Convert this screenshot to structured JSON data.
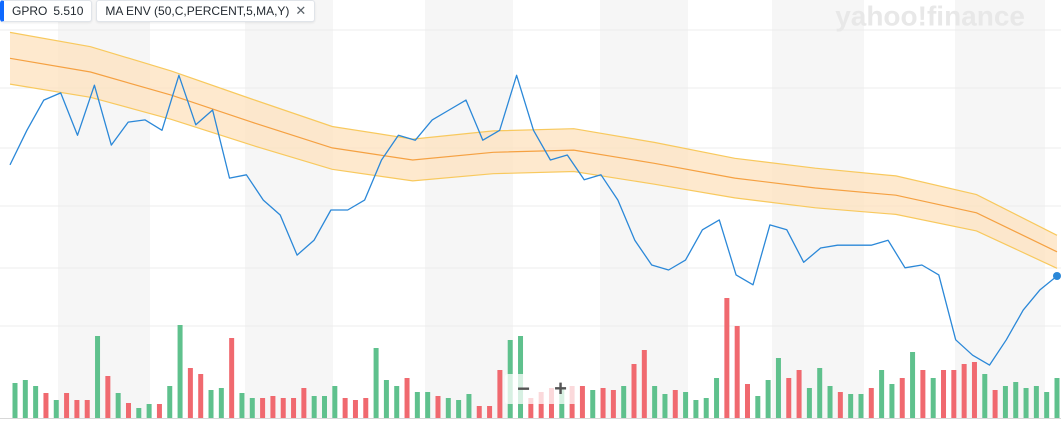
{
  "chart_data": {
    "type": "stock",
    "symbol": "GPRO",
    "price_label": "5.510",
    "indicator": "MA ENV (50,C,PERCENT,5,MA,Y)",
    "close_icon": "✕",
    "watermark": "yahoo!finance",
    "controls": [
      "−",
      "+"
    ],
    "ylim": [
      2.8,
      10.53
    ],
    "price": {
      "color": "#2b88d8",
      "values": [
        7.53,
        8.16,
        8.71,
        8.84,
        8.07,
        8.98,
        7.89,
        8.31,
        8.35,
        8.16,
        9.16,
        8.26,
        8.53,
        7.29,
        7.35,
        6.89,
        6.62,
        5.89,
        6.16,
        6.71,
        6.71,
        6.89,
        7.62,
        8.07,
        7.98,
        8.35,
        8.53,
        8.71,
        7.98,
        8.16,
        9.16,
        8.16,
        7.62,
        7.71,
        7.26,
        7.35,
        6.89,
        6.16,
        5.71,
        5.62,
        5.8,
        6.35,
        6.53,
        5.53,
        5.35,
        6.44,
        6.35,
        5.76,
        6.02,
        6.07,
        6.07,
        6.07,
        6.16,
        5.66,
        5.71,
        5.53,
        4.35,
        4.07,
        3.89,
        4.35,
        4.89,
        5.26,
        5.51
      ]
    },
    "envelope": {
      "fill": "#fde2bd",
      "band_color": "#f8c95e",
      "middle_color": "#f5a142",
      "upper": [
        9.94,
        9.68,
        9.24,
        8.73,
        8.23,
        8.0,
        8.15,
        8.19,
        7.94,
        7.65,
        7.47,
        7.33,
        6.99,
        6.25
      ],
      "middle": [
        9.47,
        9.22,
        8.8,
        8.31,
        7.84,
        7.62,
        7.76,
        7.8,
        7.56,
        7.29,
        7.11,
        6.98,
        6.66,
        5.95
      ],
      "lower": [
        9.0,
        8.76,
        8.36,
        7.89,
        7.45,
        7.24,
        7.37,
        7.41,
        7.18,
        6.93,
        6.75,
        6.63,
        6.33,
        5.65
      ]
    },
    "volume": {
      "up_color": "#5fc18d",
      "down_color": "#f0696f",
      "y2lim": [
        0,
        104.5
      ],
      "values": [
        8.75,
        9.5,
        8,
        6.25,
        4.5,
        6.25,
        4.5,
        4.5,
        20.5,
        10.5,
        6.25,
        3.75,
        2.5,
        3.5,
        3.5,
        8,
        23.25,
        12.5,
        11,
        7,
        7.5,
        20,
        6.25,
        5,
        5,
        5.5,
        5,
        5,
        7.5,
        5.5,
        5.5,
        8,
        5,
        4.5,
        5,
        17.5,
        9.5,
        8,
        10,
        6.5,
        6.5,
        5.5,
        5,
        4.5,
        6,
        3,
        3,
        12,
        19.5,
        20.5,
        5,
        6.5,
        7.5,
        7.5,
        8,
        8,
        7,
        7.5,
        7,
        8,
        13.5,
        17,
        8,
        6,
        7,
        6.5,
        4.5,
        5,
        10,
        30,
        23,
        8.5,
        5.5,
        9.5,
        15,
        10,
        12,
        7.5,
        12.5,
        8,
        6.5,
        6,
        6,
        7.5,
        12,
        8.5,
        10,
        16.5,
        12,
        10,
        12,
        12,
        13.5,
        14,
        11,
        7,
        8,
        9,
        7.5,
        8,
        6.5,
        10
      ],
      "directions": [
        "up",
        "up",
        "up",
        "down",
        "up",
        "down",
        "down",
        "down",
        "up",
        "down",
        "up",
        "down",
        "up",
        "up",
        "down",
        "up",
        "up",
        "down",
        "down",
        "up",
        "up",
        "down",
        "up",
        "up",
        "down",
        "down",
        "down",
        "down",
        "down",
        "up",
        "up",
        "up",
        "down",
        "down",
        "down",
        "up",
        "up",
        "up",
        "down",
        "up",
        "up",
        "down",
        "up",
        "up",
        "up",
        "down",
        "down",
        "down",
        "up",
        "up",
        "down",
        "down",
        "down",
        "up",
        "down",
        "down",
        "up",
        "down",
        "down",
        "up",
        "down",
        "down",
        "up",
        "up",
        "down",
        "up",
        "up",
        "up",
        "up",
        "down",
        "down",
        "down",
        "up",
        "up",
        "up",
        "down",
        "down",
        "up",
        "up",
        "up",
        "down",
        "up",
        "up",
        "down",
        "up",
        "up",
        "down",
        "up",
        "down",
        "up",
        "down",
        "down",
        "down",
        "down",
        "up",
        "down",
        "up",
        "up",
        "up",
        "up",
        "up",
        "up"
      ]
    }
  }
}
